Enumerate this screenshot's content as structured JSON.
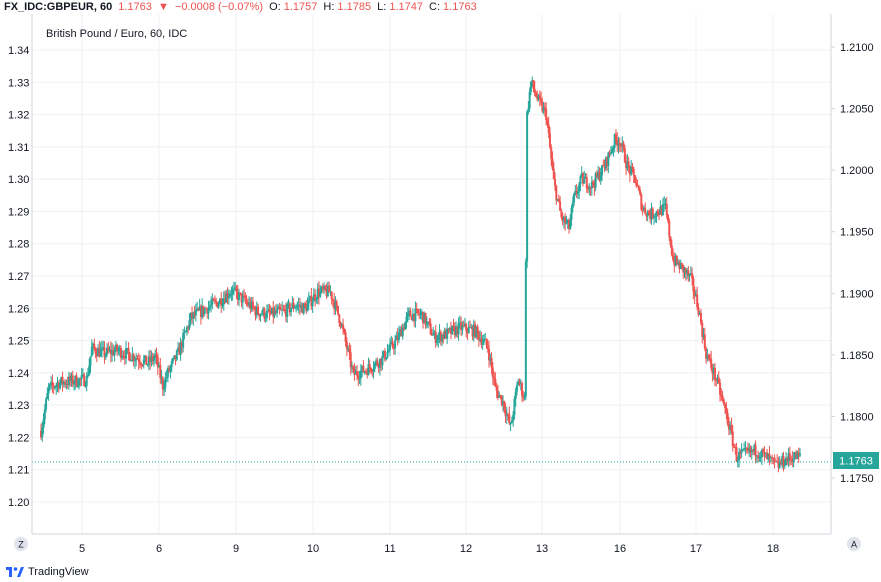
{
  "header": {
    "symbol": "FX_IDC:GBPEUR, 60",
    "last": "1.1763",
    "arrow": "▼",
    "change": "−0.0008 (−0.07%)",
    "o_label": "O:",
    "o_value": "1.1757",
    "h_label": "H:",
    "h_value": "1.1785",
    "l_label": "L:",
    "l_value": "1.1747",
    "c_label": "C:",
    "c_value": "1.1763"
  },
  "footer": {
    "brand": "TradingView"
  },
  "scale_buttons": {
    "left": "Z",
    "right": "A"
  },
  "colors": {
    "up": "#26a69a",
    "down": "#ef5350",
    "grid": "#eef0f3",
    "axis_text": "#131722",
    "price_line": "#26a69a"
  },
  "chart_data": {
    "type": "candlestick",
    "title": "British Pound / Euro, 60, IDC",
    "x_ticks": [
      "5",
      "6",
      "9",
      "10",
      "11",
      "12",
      "13",
      "16",
      "17",
      "18"
    ],
    "left_axis": {
      "ticks": [
        "1.34",
        "1.33",
        "1.32",
        "1.31",
        "1.30",
        "1.29",
        "1.28",
        "1.27",
        "1.26",
        "1.25",
        "1.24",
        "1.23",
        "1.22",
        "1.21",
        "1.20"
      ],
      "range": [
        1.1955,
        1.343
      ]
    },
    "right_axis": {
      "ticks": [
        "1.2100",
        "1.2050",
        "1.2000",
        "1.1950",
        "1.1900",
        "1.1850",
        "1.1800",
        "1.1750"
      ],
      "range": [
        1.1703,
        1.2126
      ]
    },
    "last_price_label": "1.1763",
    "last_price": 1.1763,
    "path": [
      [
        0,
        1.222
      ],
      [
        6,
        1.235
      ],
      [
        14,
        1.237
      ],
      [
        26,
        1.2375
      ],
      [
        36,
        1.238
      ],
      [
        40,
        1.2475
      ],
      [
        50,
        1.246
      ],
      [
        60,
        1.247
      ],
      [
        74,
        1.245
      ],
      [
        84,
        1.243
      ],
      [
        90,
        1.245
      ],
      [
        96,
        1.236
      ],
      [
        100,
        1.24
      ],
      [
        108,
        1.246
      ],
      [
        118,
        1.257
      ],
      [
        130,
        1.26
      ],
      [
        140,
        1.262
      ],
      [
        150,
        1.2655
      ],
      [
        158,
        1.263
      ],
      [
        170,
        1.259
      ],
      [
        180,
        1.258
      ],
      [
        192,
        1.259
      ],
      [
        200,
        1.261
      ],
      [
        208,
        1.26
      ],
      [
        218,
        1.265
      ],
      [
        228,
        1.265
      ],
      [
        236,
        1.256
      ],
      [
        246,
        1.2395
      ],
      [
        256,
        1.241
      ],
      [
        268,
        1.244
      ],
      [
        280,
        1.25
      ],
      [
        290,
        1.258
      ],
      [
        300,
        1.258
      ],
      [
        310,
        1.251
      ],
      [
        320,
        1.252
      ],
      [
        330,
        1.254
      ],
      [
        342,
        1.253
      ],
      [
        352,
        1.248
      ],
      [
        358,
        1.235
      ],
      [
        364,
        1.231
      ],
      [
        370,
        1.223
      ],
      [
        376,
        1.238
      ],
      [
        381,
        1.232
      ],
      [
        383,
        1.32
      ],
      [
        386,
        1.33
      ],
      [
        392,
        1.324
      ],
      [
        398,
        1.32
      ],
      [
        404,
        1.299
      ],
      [
        410,
        1.288
      ],
      [
        416,
        1.285
      ],
      [
        420,
        1.294
      ],
      [
        426,
        1.3
      ],
      [
        434,
        1.298
      ],
      [
        444,
        1.304
      ],
      [
        452,
        1.312
      ],
      [
        456,
        1.312
      ],
      [
        462,
        1.304
      ],
      [
        468,
        1.3
      ],
      [
        474,
        1.291
      ],
      [
        480,
        1.289
      ],
      [
        486,
        1.29
      ],
      [
        492,
        1.291
      ],
      [
        498,
        1.275
      ],
      [
        506,
        1.272
      ],
      [
        512,
        1.269
      ],
      [
        518,
        1.26
      ],
      [
        524,
        1.246
      ],
      [
        532,
        1.238
      ],
      [
        540,
        1.227
      ],
      [
        548,
        1.214
      ],
      [
        556,
        1.215
      ],
      [
        564,
        1.216
      ],
      [
        574,
        1.213
      ],
      [
        580,
        1.211
      ],
      [
        586,
        1.213
      ],
      [
        592,
        1.214
      ],
      [
        598,
        1.214
      ]
    ]
  }
}
